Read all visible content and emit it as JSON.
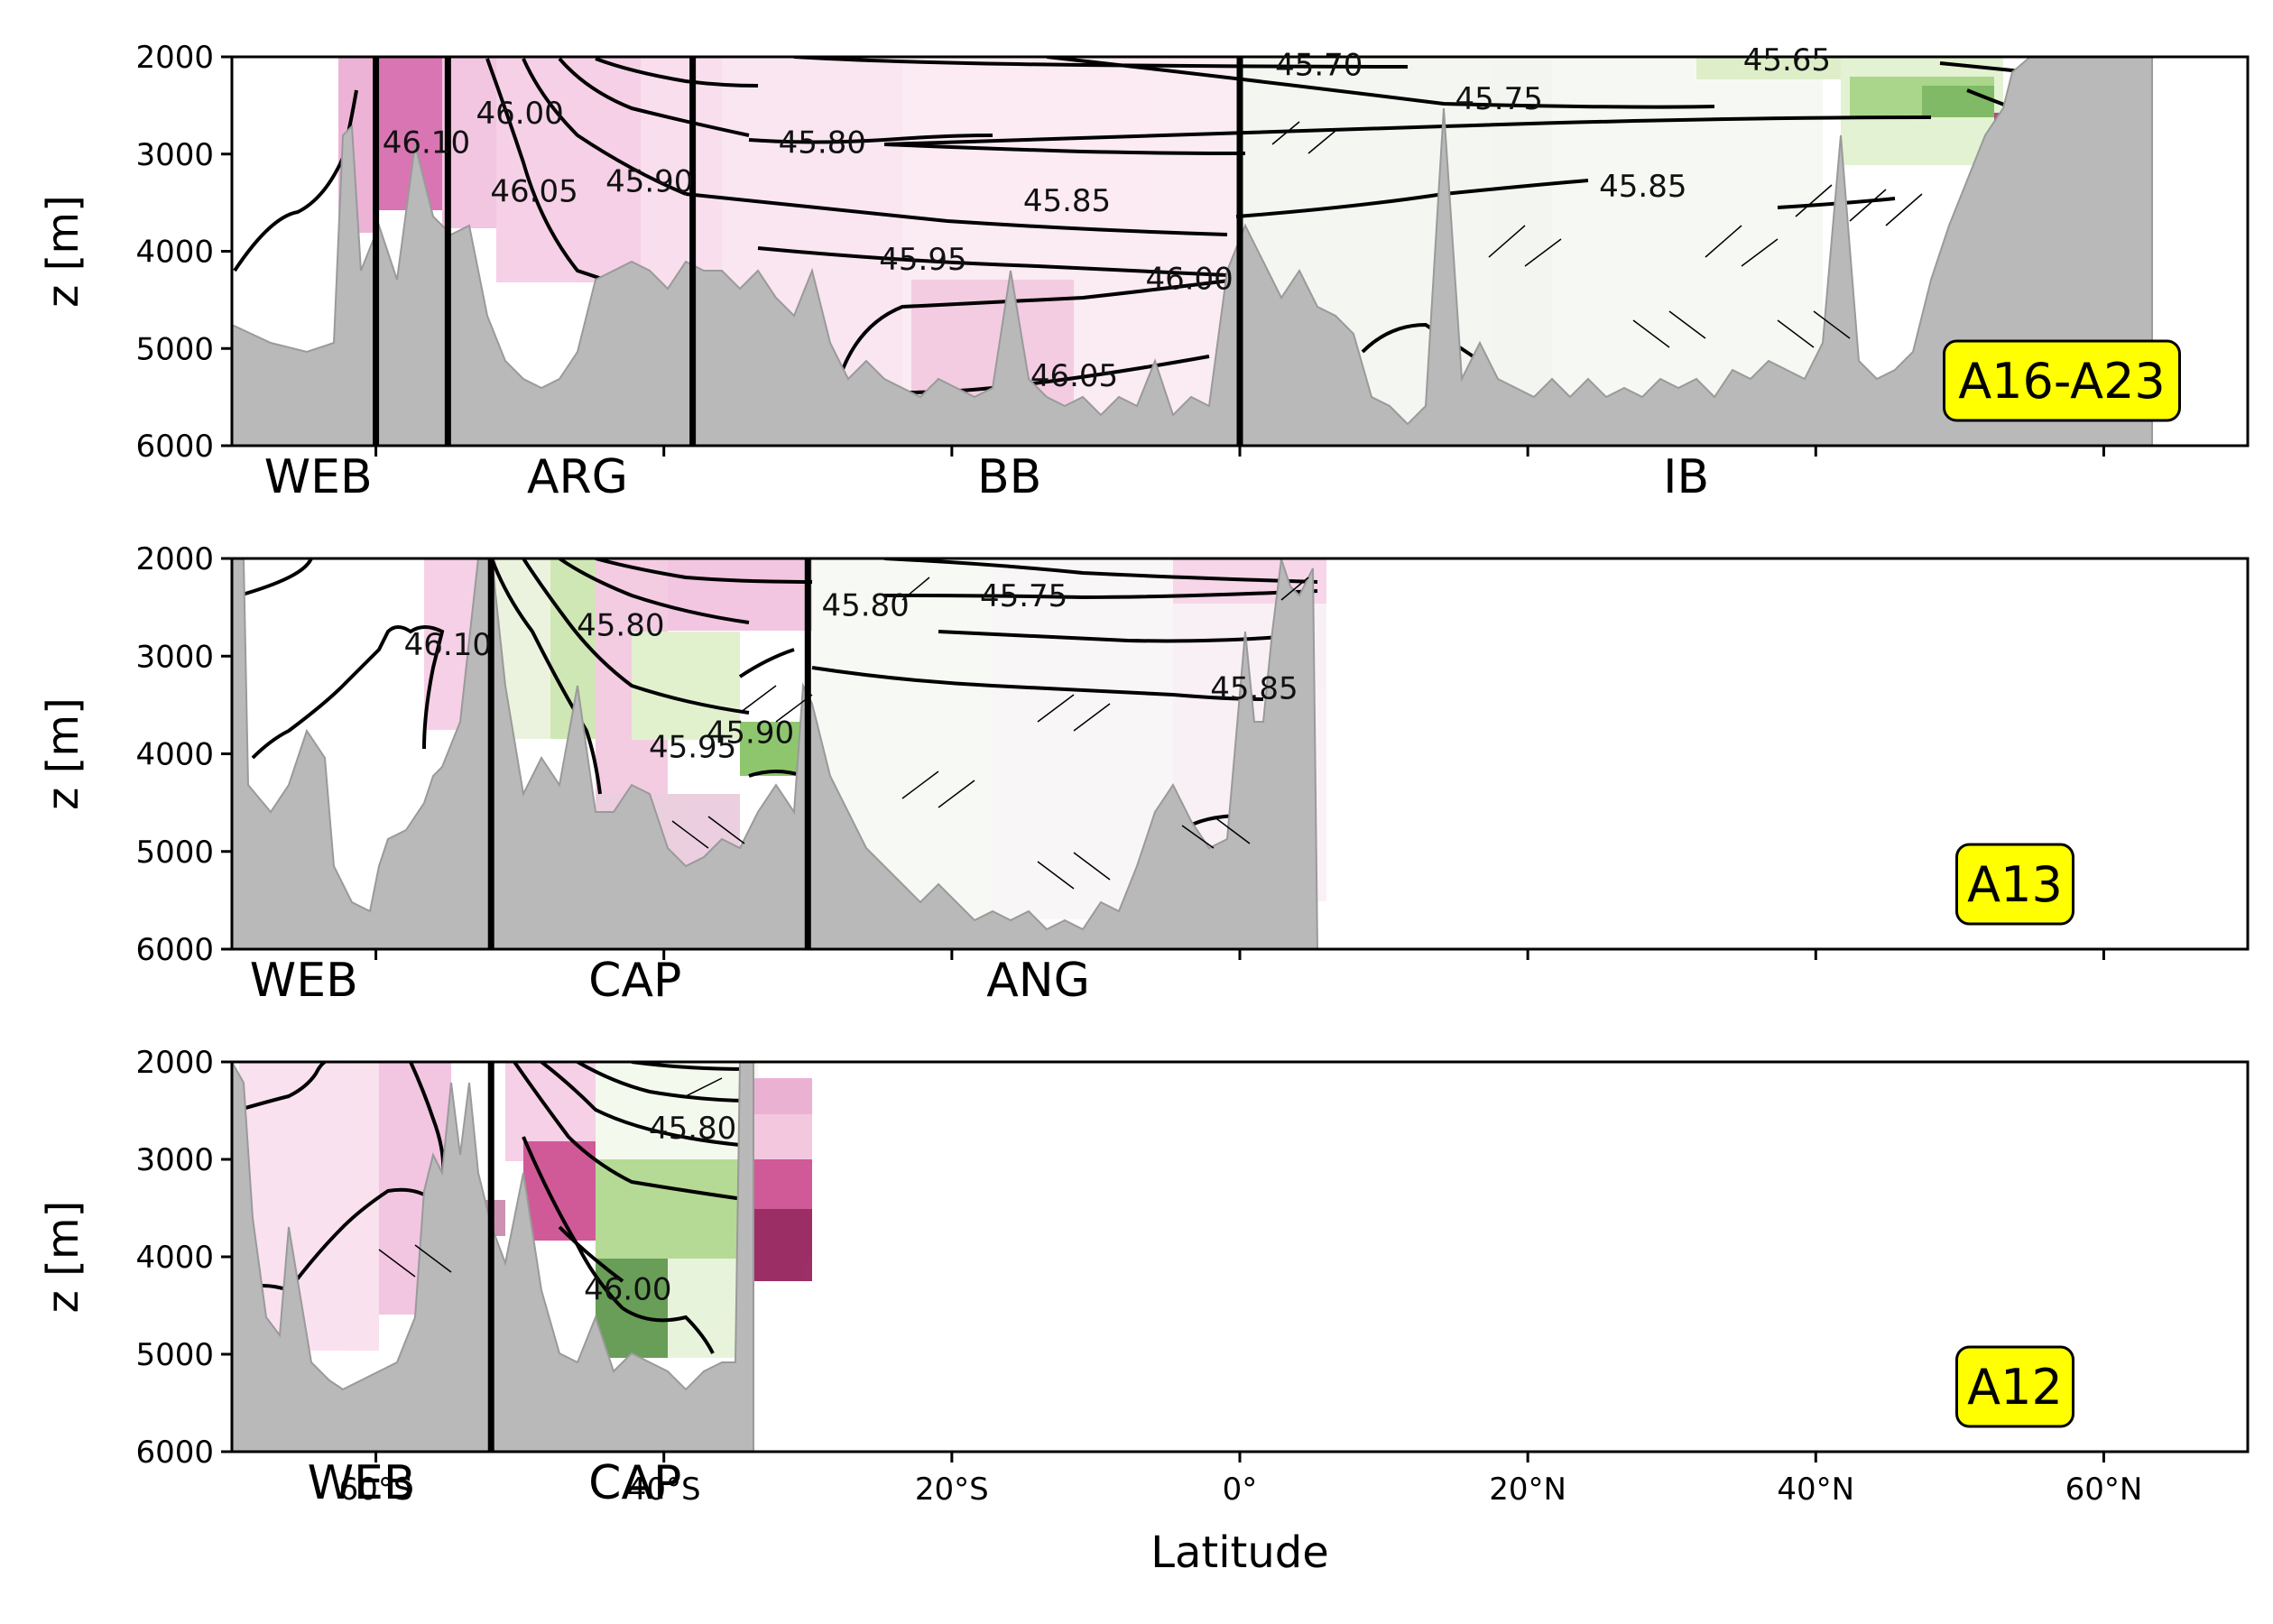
{
  "chart_data": [
    {
      "type": "heatmap",
      "section": "A16-A23",
      "ylabel": "z [m]",
      "xlabel": "",
      "yticks": [
        "2000",
        "3000",
        "4000",
        "5000",
        "6000"
      ],
      "xlim": [
        -70,
        70
      ],
      "ylim": [
        6000,
        2000
      ],
      "basins": [
        {
          "name": "WEB",
          "lat": -64
        },
        {
          "name": "ARG",
          "lat": -46
        },
        {
          "name": "BB",
          "lat": -16
        },
        {
          "name": "IB",
          "lat": 31
        }
      ],
      "boundaries": [
        -60,
        -55,
        -38,
        0
      ],
      "contours": [
        {
          "text": "46.10",
          "lat": -56.5,
          "z": 2900
        },
        {
          "text": "46.00",
          "lat": -50,
          "z": 2600
        },
        {
          "text": "46.05",
          "lat": -49,
          "z": 3400
        },
        {
          "text": "45.90",
          "lat": -41,
          "z": 3300
        },
        {
          "text": "45.80",
          "lat": -29,
          "z": 2900
        },
        {
          "text": "45.85",
          "lat": -12,
          "z": 3500
        },
        {
          "text": "45.95",
          "lat": -22,
          "z": 4100
        },
        {
          "text": "46.00",
          "lat": -3.5,
          "z": 4300
        },
        {
          "text": "46.05",
          "lat": -11.5,
          "z": 5300
        },
        {
          "text": "45.70",
          "lat": 5.5,
          "z": 2100
        },
        {
          "text": "45.75",
          "lat": 18,
          "z": 2450
        },
        {
          "text": "45.85",
          "lat": 28,
          "z": 3350
        },
        {
          "text": "45.65",
          "lat": 38,
          "z": 2050
        }
      ],
      "box_label": "A16-A23"
    },
    {
      "type": "heatmap",
      "section": "A13",
      "ylabel": "z [m]",
      "xlabel": "",
      "yticks": [
        "2000",
        "3000",
        "4000",
        "5000",
        "6000"
      ],
      "xlim": [
        -70,
        70
      ],
      "ylim": [
        6000,
        2000
      ],
      "basins": [
        {
          "name": "WEB",
          "lat": -65
        },
        {
          "name": "CAP",
          "lat": -42
        },
        {
          "name": "ANG",
          "lat": -14
        }
      ],
      "boundaries": [
        -52,
        -30
      ],
      "contours": [
        {
          "text": "46.10",
          "lat": -55,
          "z": 2900
        },
        {
          "text": "45.80",
          "lat": -43,
          "z": 2700
        },
        {
          "text": "45.80",
          "lat": -26,
          "z": 2500
        },
        {
          "text": "45.75",
          "lat": -15,
          "z": 2400
        },
        {
          "text": "45.85",
          "lat": 1,
          "z": 3350
        },
        {
          "text": "45.90",
          "lat": -34,
          "z": 3800
        },
        {
          "text": "45.95",
          "lat": -38,
          "z": 3950
        }
      ],
      "box_label": "A13"
    },
    {
      "type": "heatmap",
      "section": "A12",
      "ylabel": "z [m]",
      "xlabel": "Latitude",
      "yticks": [
        "2000",
        "3000",
        "4000",
        "5000",
        "6000"
      ],
      "xticks": [
        "60°S",
        "40°S",
        "20°S",
        "0°",
        "20°N",
        "40°N",
        "60°N"
      ],
      "xlim": [
        -70,
        70
      ],
      "ylim": [
        6000,
        2000
      ],
      "basins": [
        {
          "name": "WEB",
          "lat": -61
        },
        {
          "name": "CAP",
          "lat": -42
        }
      ],
      "boundaries": [
        -52
      ],
      "contours": [
        {
          "text": "45.80",
          "lat": -38,
          "z": 2700
        },
        {
          "text": "46.00",
          "lat": -42.5,
          "z": 4350
        }
      ],
      "box_label": "A12"
    }
  ]
}
